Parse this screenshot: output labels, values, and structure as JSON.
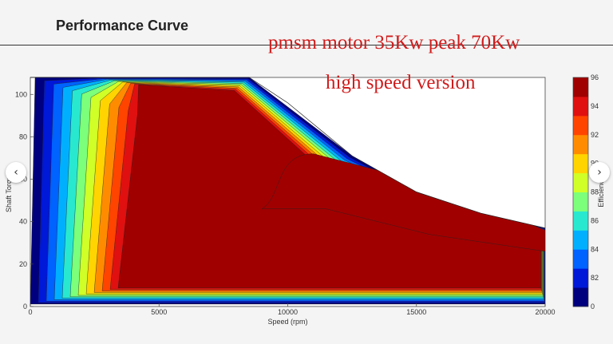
{
  "header": {
    "title": "Performance Curve"
  },
  "overlay": {
    "line1": "pmsm motor 35Kw peak 70Kw",
    "line2": "high speed version"
  },
  "nav": {
    "prev_icon": "chevron-left-icon",
    "next_icon": "chevron-right-icon"
  },
  "chart_data": {
    "type": "heatmap",
    "subtype": "efficiency contour map",
    "xlabel": "Speed  (rpm)",
    "ylabel": "Shaft Torque",
    "xlim": [
      0,
      20000
    ],
    "ylim": [
      0,
      108
    ],
    "x_ticks": [
      0,
      5000,
      10000,
      15000,
      20000
    ],
    "y_ticks": [
      0,
      20,
      40,
      60,
      80,
      100
    ],
    "colorbar": {
      "label": "Efficiency",
      "range": [
        80,
        96
      ],
      "ticks": [
        96,
        94,
        92,
        90,
        88,
        86,
        84,
        82
      ],
      "zero_label": "0",
      "colors": [
        "#00007f",
        "#0018d8",
        "#0062ff",
        "#00b0ff",
        "#28e8d0",
        "#7cff7a",
        "#d0ff28",
        "#ffd400",
        "#ff8c00",
        "#ff4400",
        "#e01010",
        "#a00000"
      ]
    },
    "envelope": {
      "speed": [
        0,
        2500,
        5000,
        8500,
        10000,
        12500,
        15000,
        17500,
        20000
      ],
      "torque": [
        108,
        108,
        108,
        108,
        96,
        71,
        54,
        44,
        37
      ]
    },
    "grid": false,
    "legend": "colorbar-right"
  }
}
